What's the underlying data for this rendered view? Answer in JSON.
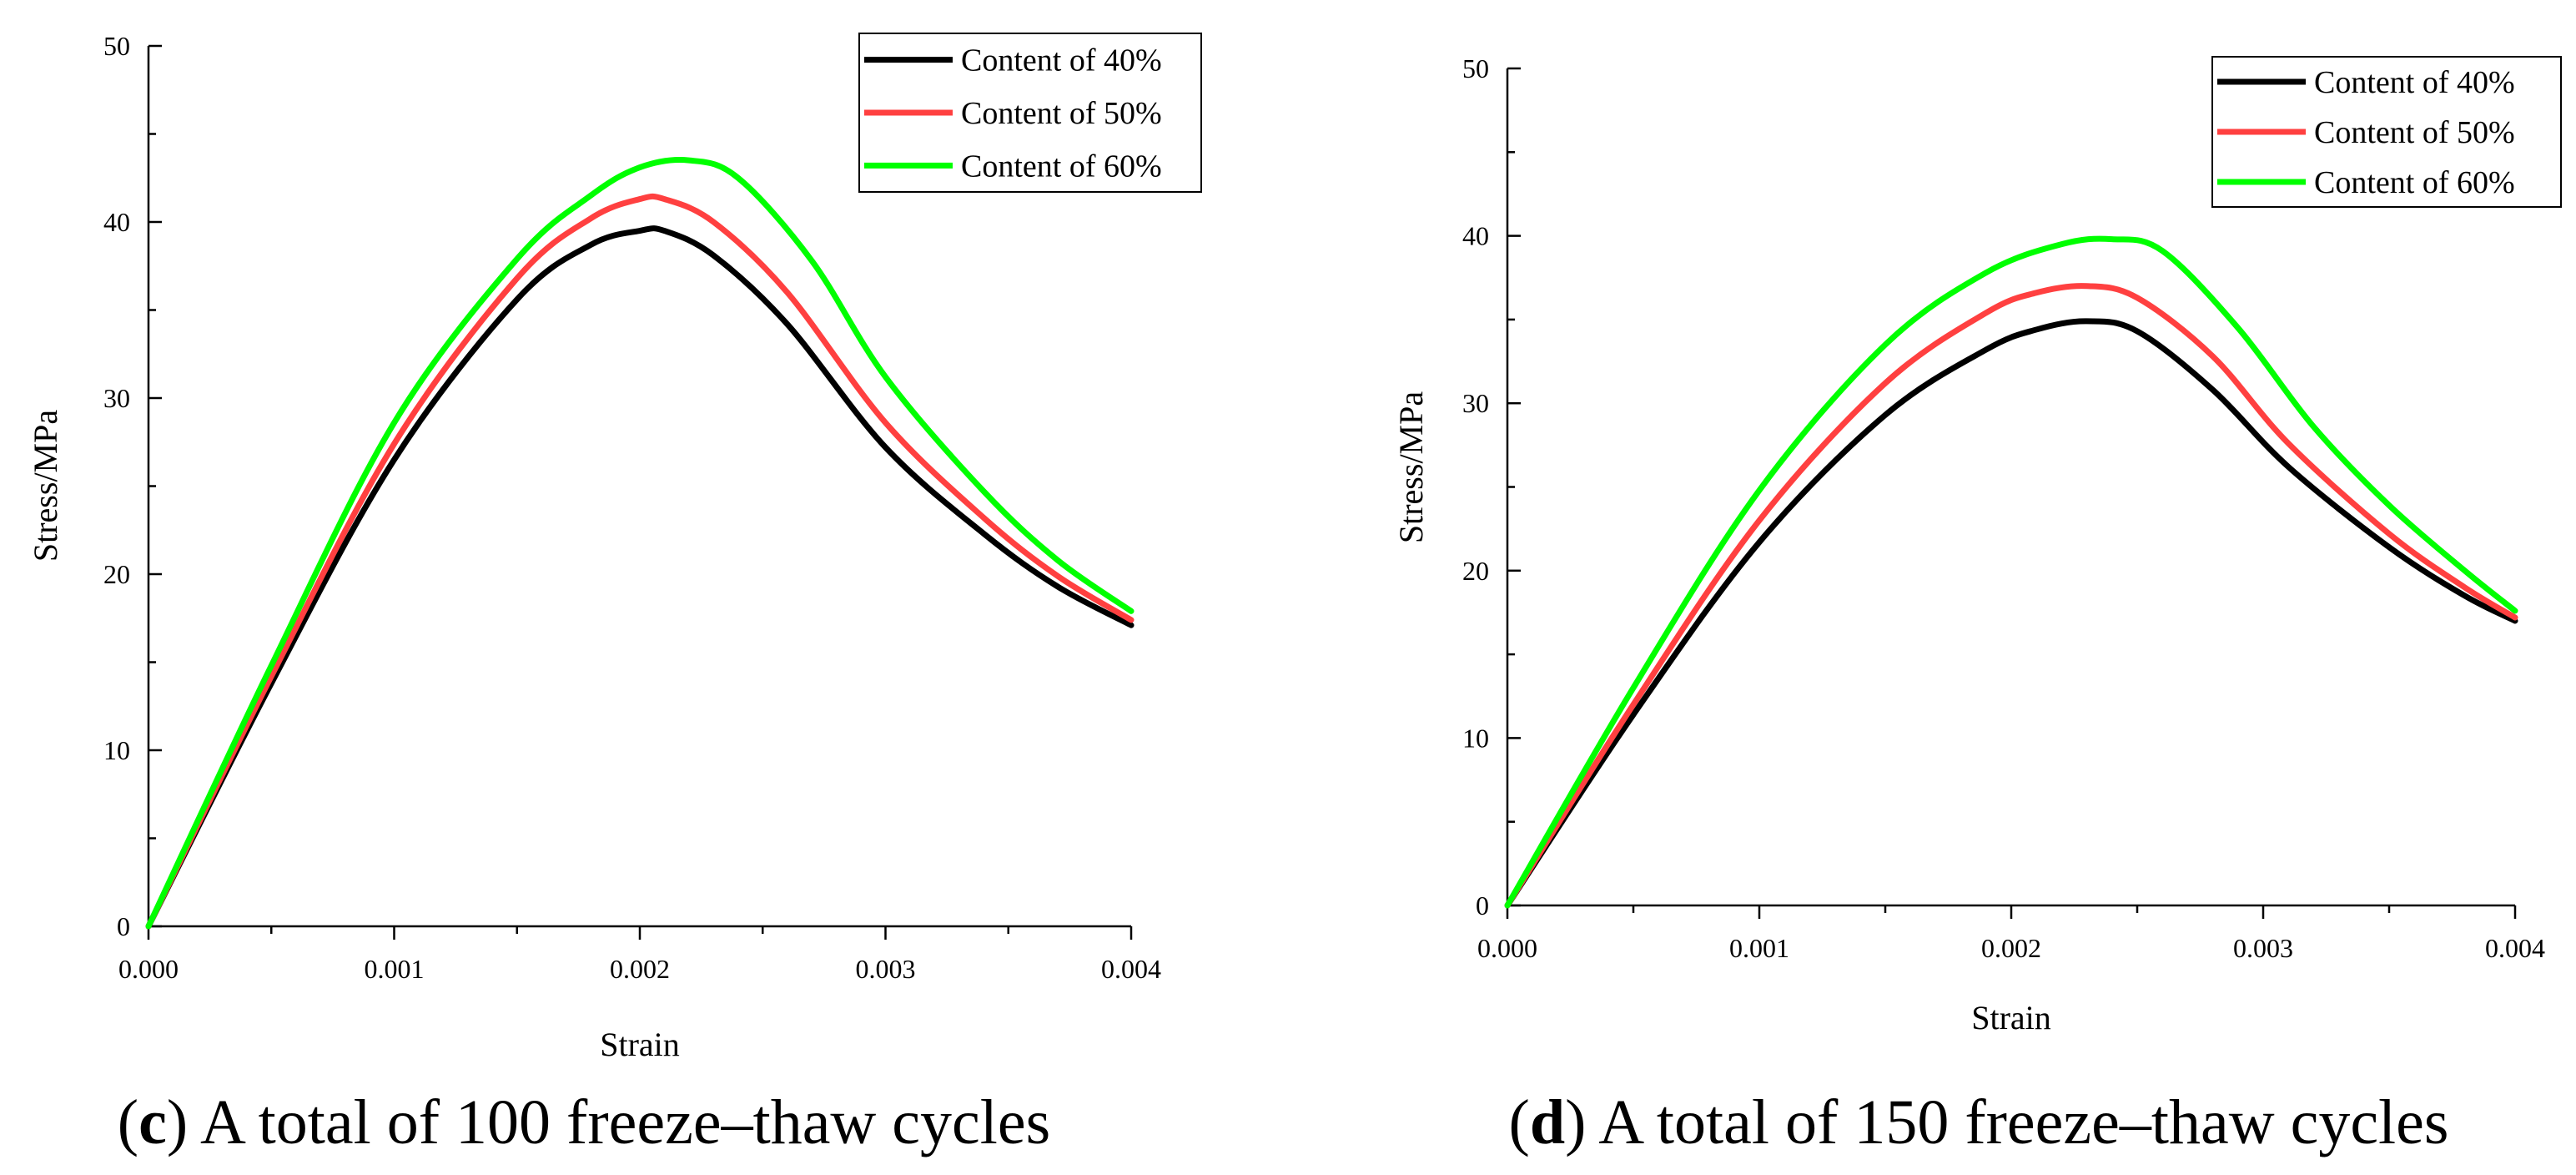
{
  "chart_data": [
    {
      "id": "c",
      "type": "line",
      "caption_letter": "c",
      "caption_text": "A total of 100 freeze–thaw cycles",
      "xlabel": "Strain",
      "ylabel": "Stress/MPa",
      "xlim": [
        0,
        0.004
      ],
      "ylim": [
        0,
        50
      ],
      "xticks": [
        0,
        0.001,
        0.002,
        0.003,
        0.004
      ],
      "xtick_labels": [
        "0.000",
        "0.001",
        "0.002",
        "0.003",
        "0.004"
      ],
      "yticks": [
        0,
        10,
        20,
        30,
        40,
        50
      ],
      "ytick_labels": [
        "0",
        "10",
        "20",
        "30",
        "40",
        "50"
      ],
      "legend_position": "top-right",
      "series": [
        {
          "name": "Content of 40%",
          "color": "#000000",
          "x": [
            0,
            0.0005,
            0.001,
            0.0015,
            0.0018,
            0.002,
            0.0021,
            0.0023,
            0.0026,
            0.003,
            0.0034,
            0.0037,
            0.004
          ],
          "y": [
            0,
            13.8,
            26.5,
            35.6,
            38.7,
            39.5,
            39.5,
            38.1,
            34.2,
            27.2,
            22.3,
            19.3,
            17.1
          ]
        },
        {
          "name": "Content of 50%",
          "color": "#ff4040",
          "x": [
            0,
            0.0005,
            0.001,
            0.0015,
            0.0018,
            0.002,
            0.0021,
            0.0023,
            0.0026,
            0.003,
            0.0034,
            0.0037,
            0.004
          ],
          "y": [
            0,
            14.2,
            27.4,
            36.8,
            40.2,
            41.3,
            41.3,
            40.0,
            36.0,
            28.6,
            23.2,
            19.9,
            17.4
          ]
        },
        {
          "name": "Content of 60%",
          "color": "#00ff00",
          "x": [
            0,
            0.0005,
            0.001,
            0.0015,
            0.0018,
            0.002,
            0.0022,
            0.0024,
            0.0027,
            0.003,
            0.0034,
            0.0037,
            0.004
          ],
          "y": [
            0,
            14.8,
            28.6,
            37.9,
            41.5,
            43.1,
            43.5,
            42.5,
            37.8,
            31.2,
            24.7,
            20.8,
            17.9
          ]
        }
      ]
    },
    {
      "id": "d",
      "type": "line",
      "caption_letter": "d",
      "caption_text": "A total of 150 freeze–thaw cycles",
      "xlabel": "Strain",
      "ylabel": "Stress/MPa",
      "xlim": [
        0,
        0.004
      ],
      "ylim": [
        0,
        50
      ],
      "xticks": [
        0,
        0.001,
        0.002,
        0.003,
        0.004
      ],
      "xtick_labels": [
        "0.000",
        "0.001",
        "0.002",
        "0.003",
        "0.004"
      ],
      "yticks": [
        0,
        10,
        20,
        30,
        40,
        50
      ],
      "ytick_labels": [
        "0",
        "10",
        "20",
        "30",
        "40",
        "50"
      ],
      "legend_position": "top-right",
      "series": [
        {
          "name": "Content of 40%",
          "color": "#000000",
          "x": [
            0,
            0.0005,
            0.001,
            0.0015,
            0.0019,
            0.0021,
            0.0023,
            0.0025,
            0.0028,
            0.0031,
            0.0035,
            0.0038,
            0.004
          ],
          "y": [
            0,
            11.4,
            21.7,
            29.3,
            33.2,
            34.4,
            34.9,
            34.3,
            30.8,
            26.2,
            21.4,
            18.5,
            17.0
          ]
        },
        {
          "name": "Content of 50%",
          "color": "#ff4040",
          "x": [
            0,
            0.0005,
            0.001,
            0.0015,
            0.0019,
            0.0021,
            0.0023,
            0.0025,
            0.0028,
            0.0031,
            0.0035,
            0.0038,
            0.004
          ],
          "y": [
            0,
            12.0,
            23.0,
            31.2,
            35.4,
            36.6,
            37.0,
            36.3,
            32.8,
            27.6,
            22.2,
            19.0,
            17.2
          ]
        },
        {
          "name": "Content of 60%",
          "color": "#00ff00",
          "x": [
            0,
            0.0005,
            0.001,
            0.0015,
            0.0019,
            0.0022,
            0.0024,
            0.0026,
            0.0029,
            0.0032,
            0.0035,
            0.0038,
            0.004
          ],
          "y": [
            0,
            13.0,
            24.8,
            33.5,
            37.8,
            39.5,
            39.8,
            39.1,
            34.5,
            28.6,
            23.9,
            20.0,
            17.6
          ]
        }
      ]
    }
  ]
}
